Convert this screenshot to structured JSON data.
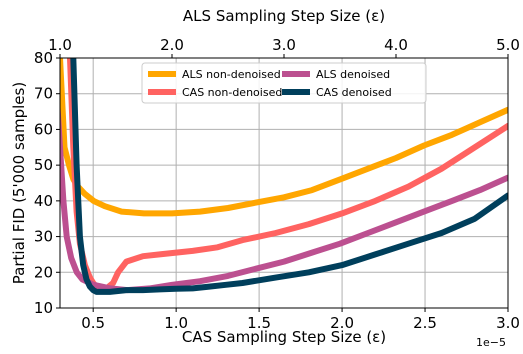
{
  "chart_data": {
    "type": "line",
    "xlabel_bottom": "CAS Sampling Step Size (ε)",
    "xlabel_top": "ALS Sampling Step Size (ε)",
    "ylabel": "Partial FID (5'000 samples)",
    "x_sci_label": "1e−5",
    "xlim_bottom": [
      0.3,
      3.0
    ],
    "xlim_top": [
      1.0,
      5.0
    ],
    "ylim": [
      10,
      80
    ],
    "xticks_bottom": [
      "0.5",
      "1.0",
      "1.5",
      "2.0",
      "2.5",
      "3.0"
    ],
    "xticks_bottom_values": [
      0.5,
      1.0,
      1.5,
      2.0,
      2.5,
      3.0
    ],
    "xticks_top": [
      "1.0",
      "2.0",
      "3.0",
      "4.0",
      "5.0"
    ],
    "xticks_top_values": [
      1.0,
      2.0,
      3.0,
      4.0,
      5.0
    ],
    "yticks": [
      "10",
      "20",
      "30",
      "40",
      "50",
      "60",
      "70",
      "80"
    ],
    "yticks_values": [
      10,
      20,
      30,
      40,
      50,
      60,
      70,
      80
    ],
    "grid": true,
    "legend_position": "top-center",
    "series": [
      {
        "name": "ALS non-denoised",
        "axis": "top",
        "color": "#ffa600",
        "x": [
          1.0,
          1.04,
          1.08,
          1.12,
          1.16,
          1.22,
          1.3,
          1.4,
          1.55,
          1.75,
          2.0,
          2.25,
          2.5,
          2.75,
          3.0,
          3.25,
          3.5,
          3.75,
          4.0,
          4.25,
          4.5,
          4.75,
          5.0
        ],
        "y": [
          80,
          55,
          50,
          46,
          44,
          42,
          40,
          38.5,
          37,
          36.5,
          36.5,
          37,
          38,
          39.5,
          41,
          43,
          46,
          49,
          52,
          55.5,
          58.5,
          62,
          65.5
        ]
      },
      {
        "name": "ALS denoised",
        "axis": "top",
        "color": "#bc5090",
        "x": [
          0.95,
          1.0,
          1.03,
          1.06,
          1.1,
          1.15,
          1.2,
          1.3,
          1.45,
          1.6,
          1.8,
          2.0,
          2.25,
          2.5,
          2.75,
          3.0,
          3.25,
          3.5,
          3.75,
          4.0,
          4.25,
          4.5,
          4.75,
          5.0
        ],
        "y": [
          80,
          55,
          40,
          30,
          24,
          20,
          18,
          16.5,
          15.5,
          15,
          15.5,
          16.5,
          17.5,
          19,
          21,
          23,
          25.5,
          28,
          31,
          34,
          37,
          40,
          43,
          46.5
        ]
      },
      {
        "name": "CAS non-denoised",
        "axis": "bottom",
        "color": "#ff6361",
        "x": [
          0.36,
          0.38,
          0.4,
          0.42,
          0.45,
          0.48,
          0.5,
          0.52,
          0.55,
          0.58,
          0.62,
          0.65,
          0.7,
          0.8,
          0.9,
          1.0,
          1.1,
          1.25,
          1.4,
          1.6,
          1.8,
          2.0,
          2.2,
          2.4,
          2.6,
          2.8,
          3.0
        ],
        "y": [
          80,
          55,
          37,
          28,
          22,
          18.5,
          17,
          16,
          15.5,
          15.5,
          17,
          20,
          23,
          24.5,
          25,
          25.5,
          26,
          27,
          29,
          31,
          33.5,
          36.5,
          40,
          44,
          49,
          55,
          61
        ]
      },
      {
        "name": "CAS denoised",
        "axis": "bottom",
        "color": "#003f5c",
        "x": [
          0.38,
          0.4,
          0.42,
          0.44,
          0.46,
          0.48,
          0.5,
          0.52,
          0.55,
          0.6,
          0.7,
          0.8,
          0.9,
          1.0,
          1.1,
          1.2,
          1.3,
          1.4,
          1.6,
          1.8,
          2.0,
          2.2,
          2.4,
          2.6,
          2.8,
          3.0
        ],
        "y": [
          80,
          50,
          30,
          22,
          18,
          16,
          15,
          14.5,
          14.5,
          14.5,
          15,
          15,
          15.2,
          15.4,
          15.5,
          16,
          16.5,
          17,
          18.5,
          20,
          22,
          25,
          28,
          31,
          35,
          41.5
        ]
      }
    ],
    "legend_order": [
      "ALS non-denoised",
      "ALS denoised",
      "CAS non-denoised",
      "CAS denoised"
    ]
  }
}
